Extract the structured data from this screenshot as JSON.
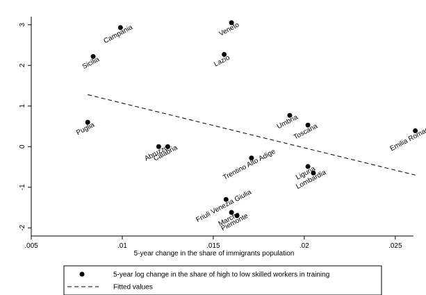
{
  "chart_data": {
    "type": "scatter",
    "xlabel": "5-year change in the share of immigrants population",
    "ylabel": "",
    "xlim": [
      0.005,
      0.026
    ],
    "ylim": [
      -2.2,
      3.2
    ],
    "x_ticks": [
      ".005",
      ".01",
      ".015",
      ".02",
      ".025"
    ],
    "x_tick_values": [
      0.005,
      0.01,
      0.015,
      0.02,
      0.025
    ],
    "y_ticks": [
      "-2",
      "-1",
      "0",
      "1",
      "2",
      "3"
    ],
    "y_tick_values": [
      -2,
      -1,
      0,
      1,
      2,
      3
    ],
    "grid": false,
    "legend_position": "bottom",
    "series": [
      {
        "name": "5-year log change in the share of high to low skilled workers in training",
        "marker": "filled-circle",
        "color": "#000000",
        "points": [
          {
            "label": "Campania",
            "x": 0.0099,
            "y": 2.93
          },
          {
            "label": "Veneto",
            "x": 0.016,
            "y": 3.05
          },
          {
            "label": "Sicilia",
            "x": 0.0084,
            "y": 2.22
          },
          {
            "label": "Lazio",
            "x": 0.0156,
            "y": 2.27
          },
          {
            "label": "Puglia",
            "x": 0.0081,
            "y": 0.6
          },
          {
            "label": "Umbria",
            "x": 0.0192,
            "y": 0.77
          },
          {
            "label": "Toscana",
            "x": 0.0202,
            "y": 0.53
          },
          {
            "label": "Emilia Romagna",
            "x": 0.0261,
            "y": 0.39
          },
          {
            "label": "Abruzzo",
            "x": 0.012,
            "y": 0.0
          },
          {
            "label": "Calabria",
            "x": 0.0125,
            "y": 0.0
          },
          {
            "label": "Trentino Alto Adige",
            "x": 0.0171,
            "y": -0.28
          },
          {
            "label": "Liguria",
            "x": 0.0202,
            "y": -0.49
          },
          {
            "label": "Lombardia",
            "x": 0.0205,
            "y": -0.65
          },
          {
            "label": "Friuli Venezia Giulia",
            "x": 0.0157,
            "y": -1.3
          },
          {
            "label": "Marche",
            "x": 0.016,
            "y": -1.62
          },
          {
            "label": "Piemonte",
            "x": 0.0163,
            "y": -1.7
          }
        ]
      },
      {
        "name": "Fitted values",
        "line_style": "dashed",
        "color": "#000000",
        "x": [
          0.0081,
          0.0261
        ],
        "y": [
          1.28,
          -0.7
        ]
      }
    ]
  }
}
